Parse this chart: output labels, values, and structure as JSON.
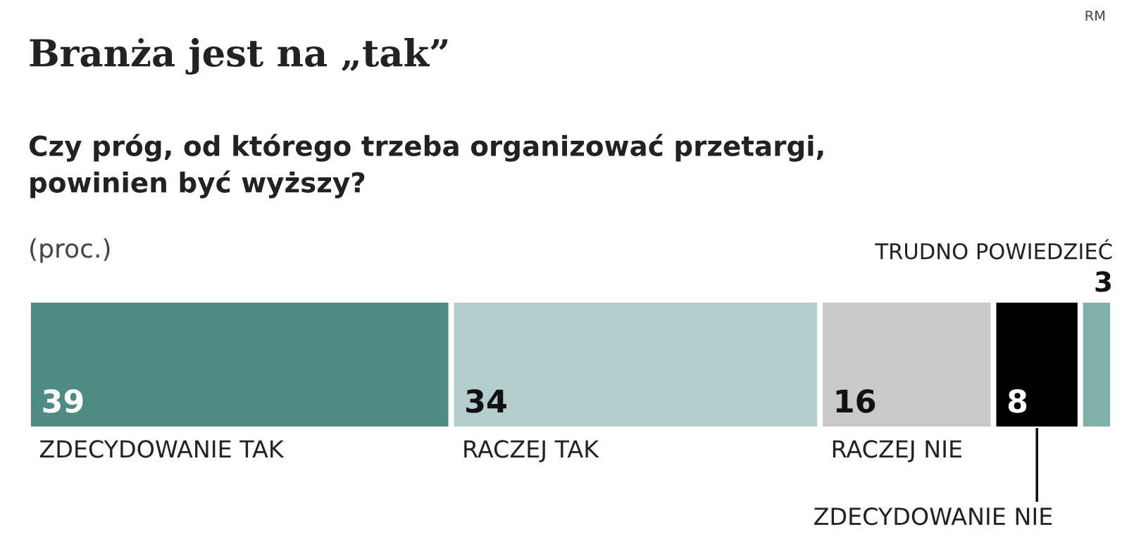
{
  "chart_data": {
    "type": "bar",
    "orientation": "horizontal",
    "stacked": true,
    "title": "Branża jest na „tak”",
    "subtitle": "Czy próg, od którego trzeba organizować przetargi,\npowinien być wyższy?",
    "annotations": [
      "(proc.)",
      "RM"
    ],
    "categories": [
      null
    ],
    "series": [
      {
        "name": "ZDECYDOWANIE TAK",
        "color": "#4f8a84",
        "values": [
          39
        ]
      },
      {
        "name": "RACZEJ TAK",
        "color": "#b2cdcc",
        "values": [
          34
        ]
      },
      {
        "name": "RACZEJ NIE",
        "color": "#c9c9c9",
        "values": [
          16
        ]
      },
      {
        "name": "ZDECYDOWANIE NIE",
        "color": "#000000",
        "values": [
          8
        ]
      },
      {
        "name": "TRUDNO POWIEDZIEĆ",
        "color": "#7fb0aa",
        "values": [
          3
        ]
      }
    ],
    "xlim": [
      0,
      100
    ],
    "data_labels": true,
    "tick_labels": false,
    "legend": false
  }
}
